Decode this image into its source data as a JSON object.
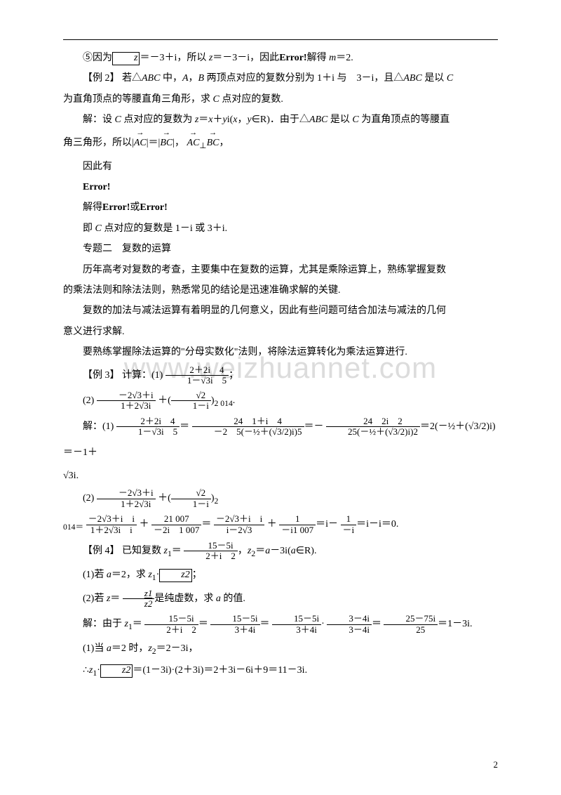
{
  "watermark": "www.weizhuannet.com",
  "page_number": "2",
  "lines": {
    "l1_a": "⑤因为",
    "l1_b": "z",
    "l1_c": "＝－3＋i，所以 ",
    "l1_z": "z",
    "l1_d": "＝－3－i，因此",
    "l1_err": "Error!",
    "l1_e": "解得 ",
    "l1_m": "m",
    "l1_f": "＝2.",
    "l2_a": "【例 2】  若△",
    "l2_abc": "ABC",
    "l2_b": " 中，",
    "l2_A": "A",
    "l2_c": "，",
    "l2_B": "B",
    "l2_d": " 两顶点对应的复数分别为 1＋i 与　3－i，且△",
    "l2_abc2": "ABC",
    "l2_e": " 是以 ",
    "l2_C": "C",
    "l3_a": "为直角顶点的等腰直角三角形，求 ",
    "l3_C": "C",
    "l3_b": " 点对应的复数.",
    "l4_a": "解：设 ",
    "l4_C": "C",
    "l4_b": " 点对应的复数为 ",
    "l4_z": "z",
    "l4_c": "＝",
    "l4_x": "x",
    "l4_d": "＋",
    "l4_y": "y",
    "l4_e": "i(",
    "l4_x2": "x",
    "l4_f": "，",
    "l4_y2": "y",
    "l4_g": "∈R)．由于△",
    "l4_abc": "ABC",
    "l4_h": " 是以 ",
    "l4_C2": "C",
    "l4_i": " 为直角顶点的等腰直",
    "l5_a": "角三角形，所以|",
    "l5_ac": "AC",
    "l5_b": "|＝|",
    "l5_bc": "BC",
    "l5_c": "|，",
    "l5_ac2": "AC",
    "l5_perp": "⊥",
    "l5_bc2": "BC",
    "l5_d": "，",
    "l6": "因此有",
    "l7": "Error!",
    "l8_a": "解得",
    "l8_b": "Error!",
    "l8_c": "或",
    "l8_d": "Error!",
    "l9_a": "即 ",
    "l9_C": "C",
    "l9_b": " 点对应的复数是 1－i 或 3＋i.",
    "l10": "专题二　复数的运算",
    "l11": "历年高考对复数的考查，主要集中在复数的运算，尤其是乘除运算上，熟练掌握复数",
    "l12": "的乘法法则和除法法则，熟悉常见的结论是迅速准确求解的关键.",
    "l13": "复数的加法与减法运算有着明显的几何意义，因此有些问题可结合加法与减法的几何",
    "l14": "意义进行求解.",
    "l15": "要熟练掌握除法运算的\"分母实数化\"法则，将除法运算转化为乘法运算进行.",
    "ex3": "【例 3】  计算：(1)",
    "ex3_frac1_num": "2＋2i　4",
    "ex3_frac1_den": "1－√3i　5",
    "ex3_semi": "；",
    "ex3_2": "(2)",
    "ex3_frac2_num": "－2√3＋i",
    "ex3_frac2_den": "1＋2√3i",
    "ex3_plus": " ＋",
    "ex3_frac3_num": "√2",
    "ex3_frac3_den": "1－i",
    "ex3_exp": "2 014",
    "sol": "解：(1)",
    "sol_f1a_num": "2＋2i　4",
    "sol_f1a_den": "1－√3i　5",
    "sol_eq1": "＝",
    "sol_f1b_num": "24　1＋i　4",
    "sol_f1b_den": "－2　5(－½＋(√3/2)i)5",
    "sol_eq2": "＝－",
    "sol_f1c_num": "24　2i　2",
    "sol_f1c_den": "25(－½＋(√3/2)i)2",
    "sol_eq3": "＝2",
    "sol_paren": "(－½＋(√3/2)i)",
    "sol_eq4": "＝－1＋",
    "sol_end": "√3i.",
    "sol2": "(2)",
    "sol2_f1_num": "－2√3＋i",
    "sol2_f1_den": "1＋2√3i",
    "sol2_plus": " ＋",
    "sol2_f2_num": "√2",
    "sol2_f2_den": "1－i",
    "sol2_exp": "2",
    "l_014": "014＝",
    "s3_f1_num": "－2√3＋i　i",
    "s3_f1_den": "1＋2√3i　i",
    "s3_plus": " ＋",
    "s3_f2_num": "21 007",
    "s3_f2_den": "－2i　1 007",
    "s3_eq": "＝",
    "s3_f3_num": "－2√3＋i　i",
    "s3_f3_den": "i－2√3",
    "s3_plus2": " ＋",
    "s3_f4_num": "1",
    "s3_f4_den": "－i1 007",
    "s3_eq2": "＝i－",
    "s3_f5_num": "1",
    "s3_f5_den": "－i",
    "s3_eq3": "＝i－i＝0.",
    "ex4_a": "【例 4】  已知复数 ",
    "ex4_z1": "z",
    "ex4_sub1": "1",
    "ex4_b": "＝",
    "ex4_f_num": "15－5i",
    "ex4_f_den": "2＋i　2",
    "ex4_c": "，",
    "ex4_z2": "z",
    "ex4_sub2": "2",
    "ex4_d": "＝",
    "ex4_a2": "a",
    "ex4_e": "－3i(",
    "ex4_a3": "a",
    "ex4_f2": "∈R).",
    "p1_a": "(1)若 ",
    "p1_a2": "a",
    "p1_b": "＝2，求 ",
    "p1_z1": "z",
    "p1_sub": "1",
    "p1_dot": "·",
    "p1_z2box": "z2",
    "p1_c": "；",
    "p2_a": "(2)若 ",
    "p2_z": "z",
    "p2_b": "＝",
    "p2_f_num": "z1",
    "p2_f_den": "z2",
    "p2_c": "是纯虚数，求 ",
    "p2_a2": "a",
    "p2_d": " 的值.",
    "fs_a": "解：由于 ",
    "fs_z1": "z",
    "fs_sub": "1",
    "fs_b": "＝",
    "fs_f1_num": "15－5i",
    "fs_f1_den": "2＋i　2",
    "fs_eq": "＝",
    "fs_f2_num": "15－5i",
    "fs_f2_den": "3＋4i",
    "fs_eq2": "＝",
    "fs_f3_num": "15－5i",
    "fs_f3_den": "3＋4i",
    "fs_dot": "·",
    "fs_f4_num": "3－4i",
    "fs_f4_den": "3－4i",
    "fs_eq3": "＝",
    "fs_f5_num": "25－75i",
    "fs_f5_den": "25",
    "fs_eq4": "＝1－3i.",
    "r1_a": "(1)当 ",
    "r1_a2": "a",
    "r1_b": "＝2 时，",
    "r1_z2": "z",
    "r1_sub": "2",
    "r1_c": "＝2－3i，",
    "r2_a": "∴",
    "r2_z1": "z",
    "r2_sub": "1",
    "r2_dot": "·",
    "r2_z2box": "z2",
    "r2_b": "＝(1－3i)·(2＋3i)＝2＋3i－6i＋9＝11－3i."
  }
}
